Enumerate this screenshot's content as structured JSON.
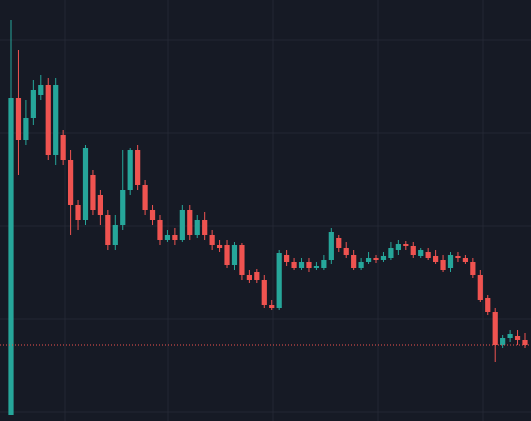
{
  "chart_data": {
    "type": "candlestick",
    "up_color": "#26a69a",
    "down_color": "#ef5350",
    "ylim": [
      0,
      421
    ],
    "price_line": 76,
    "price_line_color": "#ef5350",
    "open": [
      6,
      323,
      281,
      303,
      326,
      336,
      266,
      286,
      261,
      216,
      201,
      246,
      226,
      206,
      176,
      196,
      231,
      271,
      236,
      211,
      201,
      181,
      186,
      181,
      211,
      186,
      201,
      186,
      176,
      176,
      156,
      176,
      146,
      149,
      141,
      116,
      113,
      166,
      159,
      153,
      159,
      153,
      153,
      161,
      183,
      173,
      166,
      153,
      159,
      163,
      161,
      163,
      171,
      177,
      175,
      165,
      169,
      165,
      161,
      153,
      165,
      163,
      159,
      146,
      123,
      109,
      76,
      83,
      85,
      81
    ],
    "high": [
      401,
      371,
      321,
      341,
      346,
      343,
      343,
      291,
      271,
      221,
      276,
      251,
      231,
      211,
      206,
      271,
      273,
      276,
      241,
      216,
      206,
      191,
      193,
      216,
      216,
      206,
      209,
      191,
      181,
      181,
      179,
      178,
      151,
      152,
      146,
      121,
      171,
      171,
      163,
      163,
      163,
      159,
      166,
      193,
      186,
      179,
      171,
      163,
      169,
      166,
      169,
      179,
      181,
      180,
      179,
      173,
      173,
      171,
      166,
      169,
      169,
      166,
      163,
      151,
      126,
      113,
      86,
      91,
      91,
      88
    ],
    "low": [
      6,
      246,
      276,
      296,
      321,
      261,
      256,
      256,
      186,
      191,
      196,
      206,
      196,
      171,
      171,
      191,
      226,
      231,
      206,
      196,
      176,
      179,
      176,
      179,
      181,
      183,
      181,
      171,
      169,
      153,
      151,
      141,
      138,
      138,
      113,
      111,
      111,
      155,
      151,
      151,
      149,
      151,
      151,
      157,
      169,
      163,
      151,
      151,
      157,
      158,
      159,
      161,
      166,
      171,
      163,
      163,
      161,
      157,
      149,
      149,
      159,
      157,
      143,
      119,
      106,
      59,
      73,
      79,
      76,
      73
    ],
    "close": [
      323,
      281,
      303,
      331,
      336,
      266,
      336,
      261,
      216,
      201,
      273,
      211,
      206,
      176,
      196,
      231,
      271,
      236,
      211,
      201,
      181,
      186,
      181,
      211,
      186,
      201,
      186,
      176,
      173,
      156,
      176,
      146,
      141,
      141,
      116,
      113,
      168,
      159,
      153,
      159,
      153,
      155,
      161,
      189,
      173,
      166,
      153,
      159,
      163,
      161,
      165,
      173,
      177,
      175,
      166,
      171,
      163,
      159,
      151,
      166,
      163,
      159,
      146,
      121,
      109,
      76,
      83,
      87,
      81,
      76
    ]
  }
}
